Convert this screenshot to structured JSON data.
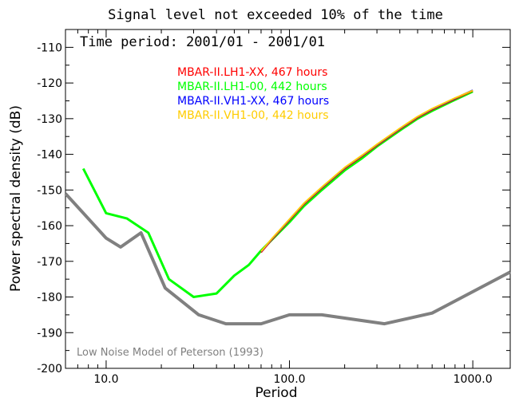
{
  "chart_data": {
    "type": "line",
    "title": "Signal level not exceeded 10% of the time",
    "subtitle": "Time period: 2001/01 - 2001/01",
    "xlabel": "Period",
    "ylabel": "Power spectral density (dB)",
    "xscale": "log",
    "xlim": [
      6.0,
      1600.0
    ],
    "ylim": [
      -200,
      -105
    ],
    "xticks": [
      {
        "value": 10,
        "label": "10.0"
      },
      {
        "value": 100,
        "label": "100.0"
      },
      {
        "value": 1000,
        "label": "1000.0"
      }
    ],
    "yticks": [
      {
        "value": -200,
        "label": "-200"
      },
      {
        "value": -190,
        "label": "-190"
      },
      {
        "value": -180,
        "label": "-180"
      },
      {
        "value": -170,
        "label": "-170"
      },
      {
        "value": -160,
        "label": "-160"
      },
      {
        "value": -150,
        "label": "-150"
      },
      {
        "value": -140,
        "label": "-140"
      },
      {
        "value": -130,
        "label": "-130"
      },
      {
        "value": -120,
        "label": "-120"
      },
      {
        "value": -110,
        "label": "-110"
      }
    ],
    "legend_position": "top-center",
    "series": [
      {
        "name": "MBAR-II.LH1-XX, 467 hours",
        "color": "#ff0000",
        "x": [
          70,
          80,
          100,
          120,
          150,
          200,
          250,
          300,
          400,
          500,
          600,
          800,
          1000
        ],
        "y": [
          -167.5,
          -164,
          -158.5,
          -154,
          -149.5,
          -144,
          -140.5,
          -137.5,
          -133,
          -129.7,
          -127.5,
          -124.5,
          -122.2
        ]
      },
      {
        "name": "MBAR-II.LH1-00, 442 hours",
        "color": "#00ff00",
        "x": [
          7.5,
          10,
          13,
          17,
          22,
          30,
          40,
          50,
          60,
          70,
          80,
          100,
          120,
          150,
          200,
          250,
          300,
          400,
          500,
          600,
          800,
          1000
        ],
        "y": [
          -144,
          -156.5,
          -158,
          -162,
          -175,
          -180,
          -179,
          -174,
          -171,
          -167,
          -164,
          -159,
          -154.5,
          -150,
          -144.5,
          -141,
          -137.8,
          -133.3,
          -130,
          -127.8,
          -124.7,
          -122.4
        ]
      },
      {
        "name": "MBAR-II.VH1-XX, 467 hours",
        "color": "#0000ff",
        "x": [
          70,
          80,
          100,
          120,
          150,
          200,
          250,
          300,
          400,
          500,
          600,
          800,
          1000
        ],
        "y": [
          -167.3,
          -163.8,
          -158.3,
          -153.8,
          -149.3,
          -143.8,
          -140.3,
          -137.3,
          -132.8,
          -129.5,
          -127.3,
          -124.3,
          -122
        ]
      },
      {
        "name": "MBAR-II.VH1-00, 442 hours",
        "color": "#ffcc00",
        "x": [
          70,
          80,
          100,
          120,
          150,
          200,
          250,
          300,
          400,
          500,
          600,
          800,
          1000
        ],
        "y": [
          -167.2,
          -163.7,
          -158.2,
          -153.7,
          -149.2,
          -143.7,
          -140.2,
          -137.2,
          -132.7,
          -129.4,
          -127.2,
          -124.2,
          -122.1
        ]
      }
    ],
    "reference": {
      "name": "Low Noise Model of Peterson (1993)",
      "color": "#808080",
      "x": [
        6,
        10,
        12,
        15.5,
        21,
        32,
        45,
        70,
        100,
        150,
        330,
        600,
        1600
      ],
      "y": [
        -151,
        -163.5,
        -166,
        -162,
        -177.5,
        -185,
        -187.5,
        -187.5,
        -185,
        -185,
        -187.5,
        -184.5,
        -173
      ]
    }
  }
}
